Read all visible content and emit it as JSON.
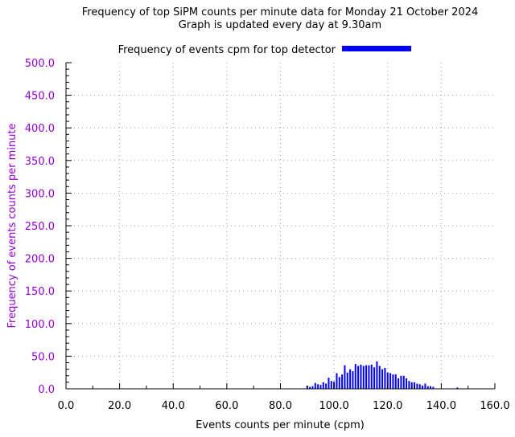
{
  "colors": {
    "bar": "#0000ff",
    "y_axis_text": "#9400d3",
    "axis": "#000000",
    "grid": "#a0a0a0",
    "background": "#ffffff"
  },
  "chart_data": {
    "type": "bar",
    "title": "Frequency of top SiPM counts per minute data for Monday 21 October 2024",
    "subtitle": "Graph is updated every day at 9.30am",
    "xlabel": "Events counts per minute (cpm)",
    "ylabel": "Frequency of events counts per minute",
    "xlim": [
      0,
      160
    ],
    "ylim": [
      0,
      500
    ],
    "grid": true,
    "legend_position": "top",
    "x_ticks": [
      "0.0",
      "20.0",
      "40.0",
      "60.0",
      "80.0",
      "100.0",
      "120.0",
      "140.0",
      "160.0"
    ],
    "y_ticks": [
      "0.0",
      "50.0",
      "100.0",
      "150.0",
      "200.0",
      "250.0",
      "300.0",
      "350.0",
      "400.0",
      "450.0",
      "500.0"
    ],
    "series": [
      {
        "name": "Frequency of events cpm for top detector",
        "x": [
          90,
          91,
          92,
          93,
          94,
          95,
          96,
          97,
          98,
          99,
          100,
          101,
          102,
          103,
          104,
          105,
          106,
          107,
          108,
          109,
          110,
          111,
          112,
          113,
          114,
          115,
          116,
          117,
          118,
          119,
          120,
          121,
          122,
          123,
          124,
          125,
          126,
          127,
          128,
          129,
          130,
          131,
          132,
          133,
          134,
          135,
          136,
          137,
          138,
          146
        ],
        "values": [
          5,
          3,
          4,
          9,
          7,
          6,
          10,
          8,
          17,
          12,
          11,
          24,
          18,
          22,
          36,
          25,
          30,
          27,
          38,
          35,
          37,
          35,
          36,
          36,
          37,
          33,
          42,
          35,
          30,
          32,
          25,
          24,
          22,
          22,
          16,
          20,
          20,
          16,
          12,
          10,
          10,
          8,
          7,
          5,
          8,
          4,
          4,
          3,
          0,
          2
        ]
      }
    ]
  }
}
